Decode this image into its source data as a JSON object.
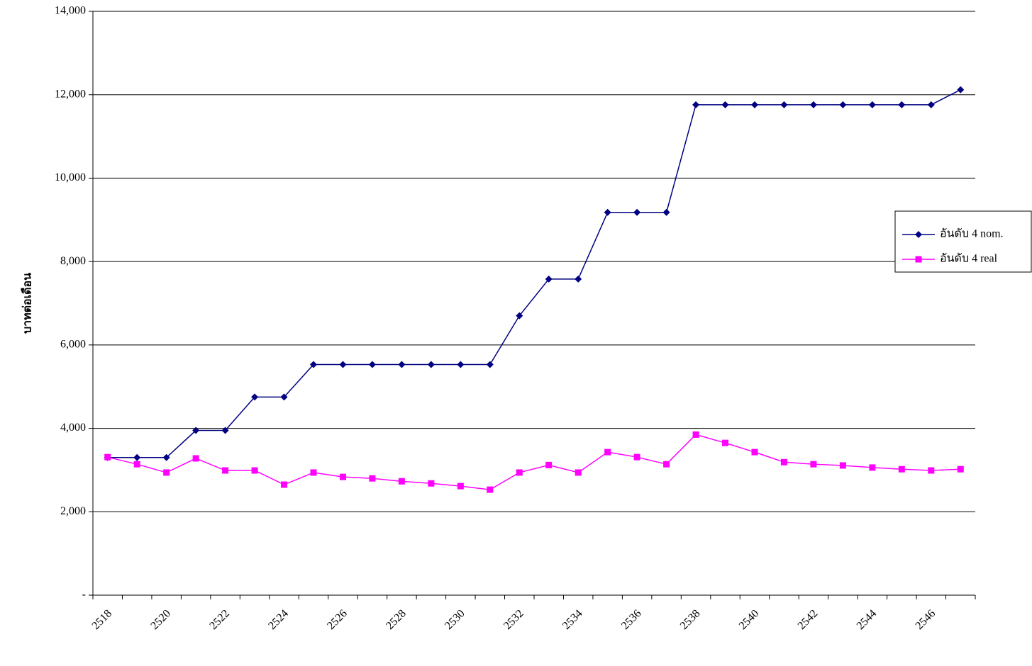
{
  "chart_data": {
    "type": "line",
    "y_label": "บาทต่อเดือน",
    "categories": [
      "2518",
      null,
      "2520",
      null,
      "2522",
      null,
      "2524",
      null,
      "2526",
      null,
      "2528",
      null,
      "2530",
      null,
      "2532",
      null,
      "2534",
      null,
      "2536",
      null,
      "2538",
      null,
      "2540",
      null,
      "2542",
      null,
      "2544",
      null,
      "2546",
      null
    ],
    "series": [
      {
        "name": "อันดับ 4 nom.",
        "color": "#000080",
        "marker": "diamond",
        "values": [
          3300,
          3300,
          3300,
          3950,
          3950,
          4750,
          4750,
          5530,
          5530,
          5530,
          5530,
          5530,
          5530,
          5530,
          6700,
          7580,
          7580,
          9180,
          9180,
          9180,
          11760,
          11760,
          11760,
          11760,
          11760,
          11760,
          11760,
          11760,
          11760,
          12120
        ]
      },
      {
        "name": "อันดับ 4 real",
        "color": "#ff00ff",
        "marker": "square",
        "values": [
          3310,
          3140,
          2940,
          3280,
          2990,
          2990,
          2650,
          2940,
          2835,
          2800,
          2730,
          2680,
          2615,
          2530,
          2940,
          3120,
          2940,
          3430,
          3310,
          3140,
          3850,
          3650,
          3430,
          3190,
          3140,
          3110,
          3060,
          3020,
          2990,
          3020
        ]
      }
    ],
    "ylim": [
      0,
      14000
    ],
    "yticks": [
      {
        "value": 0,
        "label": "-"
      },
      {
        "value": 2000,
        "label": "2,000"
      },
      {
        "value": 4000,
        "label": "4,000"
      },
      {
        "value": 6000,
        "label": "6,000"
      },
      {
        "value": 8000,
        "label": "8,000"
      },
      {
        "value": 10000,
        "label": "10,000"
      },
      {
        "value": 12000,
        "label": "12,000"
      },
      {
        "value": 14000,
        "label": "14,000"
      }
    ],
    "grid": true,
    "legend": "right"
  }
}
